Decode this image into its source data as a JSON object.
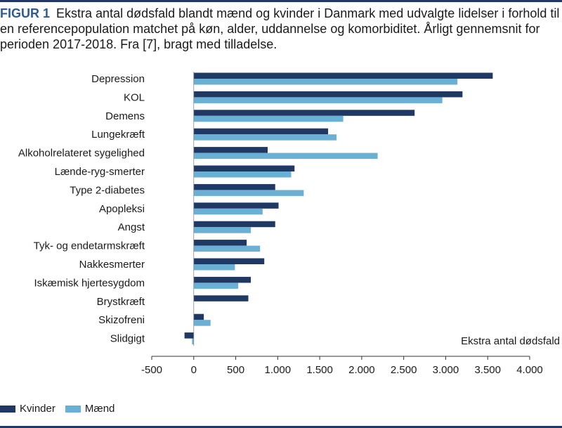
{
  "caption": {
    "label": "FIGUR 1",
    "text": "Ekstra antal dødsfald blandt mænd og kvinder i Danmark med udvalgte lidelser i forhold til en referencepopulation matchet på køn, alder, uddannelse og komorbiditet. Årligt gennemsnit for perioden 2017-2018. Fra [7], bragt med tilladelse."
  },
  "colors": {
    "kvinder": "#1f3864",
    "maend": "#6ab0d4",
    "axis": "#333333",
    "rule": "#1f3864"
  },
  "chart_data": {
    "type": "bar",
    "orientation": "horizontal",
    "title": "",
    "xlabel": "Ekstra antal dødsfald",
    "ylabel": "",
    "xlim": [
      -500,
      4000
    ],
    "xticks": [
      -500,
      0,
      500,
      1000,
      1500,
      2000,
      2500,
      3000,
      3500,
      4000
    ],
    "xtick_labels": [
      "-500",
      "0",
      "500",
      "1.000",
      "1.500",
      "2.000",
      "2.500",
      "3.000",
      "3.500",
      "4.000"
    ],
    "grid": false,
    "legend_position": "bottom-left",
    "categories": [
      "Depression",
      "KOL",
      "Demens",
      "Lungekræft",
      "Alkoholrelateret sygelighed",
      "Lænde-ryg-smerter",
      "Type 2-diabetes",
      "Apopleksi",
      "Angst",
      "Tyk- og endetarmskræft",
      "Nakkesmerter",
      "Iskæmisk hjertesygdom",
      "Brystkræft",
      "Skizofreni",
      "Slidgigt"
    ],
    "series": [
      {
        "name": "Kvinder",
        "color": "#1f3864",
        "values": [
          3560,
          3200,
          2630,
          1600,
          880,
          1200,
          970,
          1010,
          970,
          630,
          840,
          680,
          650,
          120,
          -110
        ]
      },
      {
        "name": "Mænd",
        "color": "#6ab0d4",
        "values": [
          3140,
          2960,
          1780,
          1700,
          2190,
          1160,
          1310,
          820,
          680,
          790,
          490,
          530,
          0,
          200,
          -20
        ]
      }
    ]
  }
}
